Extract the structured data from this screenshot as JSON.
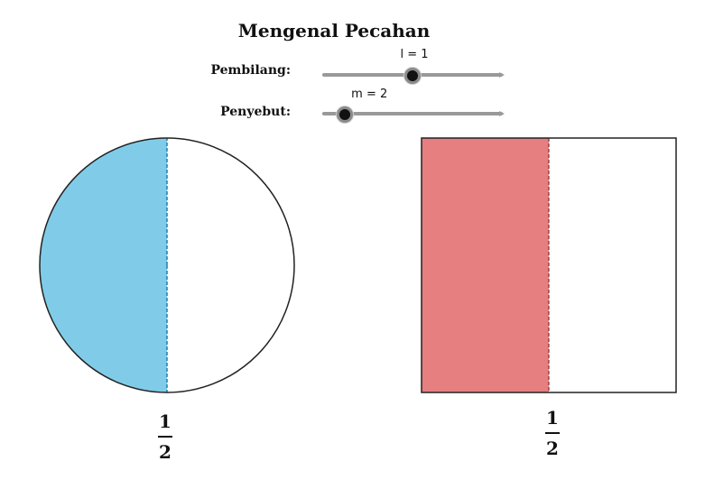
{
  "title": "Mengenal Pecahan",
  "sliders": {
    "numerator": {
      "label": "Pembilang:",
      "value_text": "l = 1",
      "value": 1,
      "min": 0,
      "max": 2
    },
    "denominator": {
      "label": "Penyebut:",
      "value_text": "m = 2",
      "value": 2,
      "min": 1,
      "max": 10
    }
  },
  "circle_model": {
    "fill_color": "#80cce8",
    "shaded_parts": 1,
    "total_parts": 2,
    "fraction": {
      "numerator": "1",
      "denominator": "2"
    }
  },
  "rect_model": {
    "fill_color": "#e67f80",
    "shaded_parts": 1,
    "total_parts": 2,
    "fraction": {
      "numerator": "1",
      "denominator": "2"
    }
  },
  "colors": {
    "slider_track": "#999999",
    "slider_knob": "#111111",
    "outline": "#222222"
  }
}
